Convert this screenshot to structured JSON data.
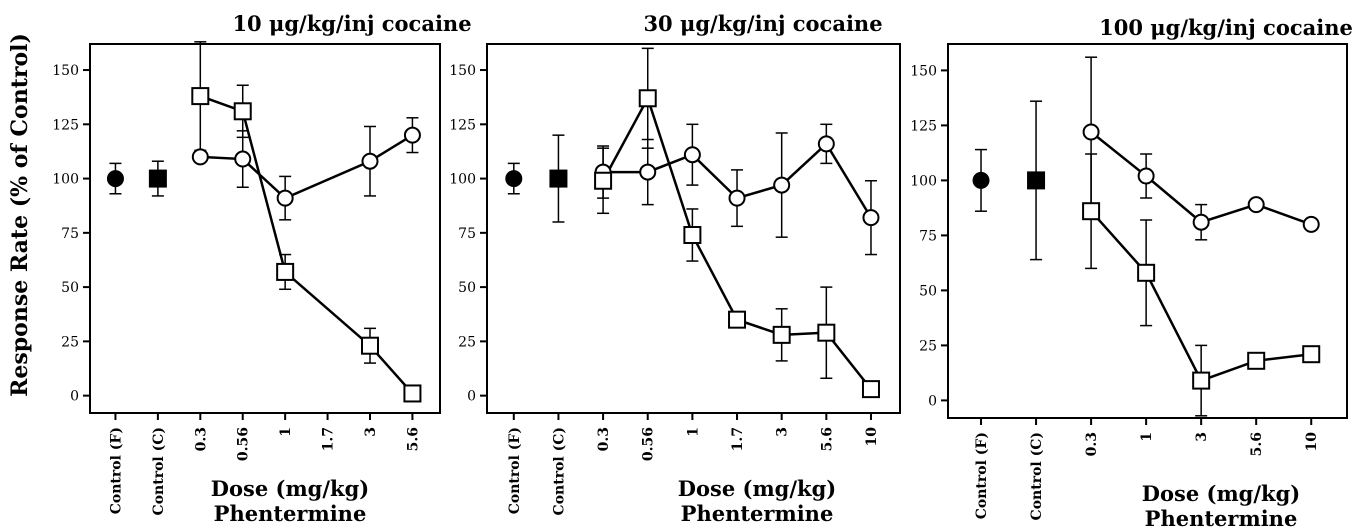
{
  "chart_data": {
    "type": "line",
    "ylabel": "Response Rate (% of Control)",
    "xlabel": "Dose (mg/kg)",
    "xlabel_line2": "Phentermine",
    "ylim": [
      -8,
      162
    ],
    "yticks": [
      0,
      25,
      50,
      75,
      100,
      125,
      150
    ],
    "grid": false,
    "legend": "none",
    "panels": [
      {
        "title": "10 μg/kg/inj cocaine",
        "categories": [
          "Control (F)",
          "Control (C)",
          "0.3",
          "0.56",
          "1",
          "1.7",
          "3",
          "5.6"
        ],
        "controls": [
          {
            "marker": "filled-circle",
            "category": "Control (F)",
            "value": 100,
            "err": 7
          },
          {
            "marker": "filled-square",
            "category": "Control (C)",
            "value": 100,
            "err": 8
          }
        ],
        "series": [
          {
            "marker": "open-circle",
            "points": [
              {
                "x": "0.3",
                "y": 110,
                "err": 0
              },
              {
                "x": "0.56",
                "y": 109,
                "err": 13
              },
              {
                "x": "1",
                "y": 91,
                "err": 10
              },
              {
                "x": "3",
                "y": 108,
                "err": 16
              },
              {
                "x": "5.6",
                "y": 120,
                "err": 8
              }
            ]
          },
          {
            "marker": "open-square",
            "points": [
              {
                "x": "0.3",
                "y": 138,
                "err": 25
              },
              {
                "x": "0.56",
                "y": 131,
                "err": 12
              },
              {
                "x": "1",
                "y": 57,
                "err": 8
              },
              {
                "x": "3",
                "y": 23,
                "err": 8
              },
              {
                "x": "5.6",
                "y": 1,
                "err": 0
              }
            ]
          }
        ]
      },
      {
        "title": "30 μg/kg/inj cocaine",
        "categories": [
          "Control (F)",
          "Control (C)",
          "0.3",
          "0.56",
          "1",
          "1.7",
          "3",
          "5.6",
          "10"
        ],
        "controls": [
          {
            "marker": "filled-circle",
            "category": "Control (F)",
            "value": 100,
            "err": 7
          },
          {
            "marker": "filled-square",
            "category": "Control (C)",
            "value": 100,
            "err": 20
          }
        ],
        "series": [
          {
            "marker": "open-circle",
            "points": [
              {
                "x": "0.3",
                "y": 103,
                "err": 12
              },
              {
                "x": "0.56",
                "y": 103,
                "err": 15
              },
              {
                "x": "1",
                "y": 111,
                "err": 14
              },
              {
                "x": "1.7",
                "y": 91,
                "err": 13
              },
              {
                "x": "3",
                "y": 97,
                "err": 24
              },
              {
                "x": "5.6",
                "y": 116,
                "err": 9
              },
              {
                "x": "10",
                "y": 82,
                "err": 17
              }
            ]
          },
          {
            "marker": "open-square",
            "points": [
              {
                "x": "0.3",
                "y": 99,
                "err": 15
              },
              {
                "x": "0.56",
                "y": 137,
                "err": 23
              },
              {
                "x": "1",
                "y": 74,
                "err": 12
              },
              {
                "x": "1.7",
                "y": 35,
                "err": 0
              },
              {
                "x": "3",
                "y": 28,
                "err": 12
              },
              {
                "x": "5.6",
                "y": 29,
                "err": 21
              },
              {
                "x": "10",
                "y": 3,
                "err": 0
              }
            ]
          }
        ]
      },
      {
        "title": "100 μg/kg/inj cocaine",
        "categories": [
          "Control (F)",
          "Control (C)",
          "0.3",
          "1",
          "3",
          "5.6",
          "10"
        ],
        "controls": [
          {
            "marker": "filled-circle",
            "category": "Control (F)",
            "value": 100,
            "err": 14
          },
          {
            "marker": "filled-square",
            "category": "Control (C)",
            "value": 100,
            "err": 36
          }
        ],
        "series": [
          {
            "marker": "open-circle",
            "points": [
              {
                "x": "0.3",
                "y": 122,
                "err": 34
              },
              {
                "x": "1",
                "y": 102,
                "err": 10
              },
              {
                "x": "3",
                "y": 81,
                "err": 8
              },
              {
                "x": "5.6",
                "y": 89,
                "err": 0
              },
              {
                "x": "10",
                "y": 80,
                "err": 0
              }
            ]
          },
          {
            "marker": "open-square",
            "points": [
              {
                "x": "0.3",
                "y": 86,
                "err": 26
              },
              {
                "x": "1",
                "y": 58,
                "err": 24
              },
              {
                "x": "3",
                "y": 9,
                "err": 16
              },
              {
                "x": "5.6",
                "y": 18,
                "err": 0
              },
              {
                "x": "10",
                "y": 21,
                "err": 0
              }
            ]
          }
        ]
      }
    ]
  }
}
